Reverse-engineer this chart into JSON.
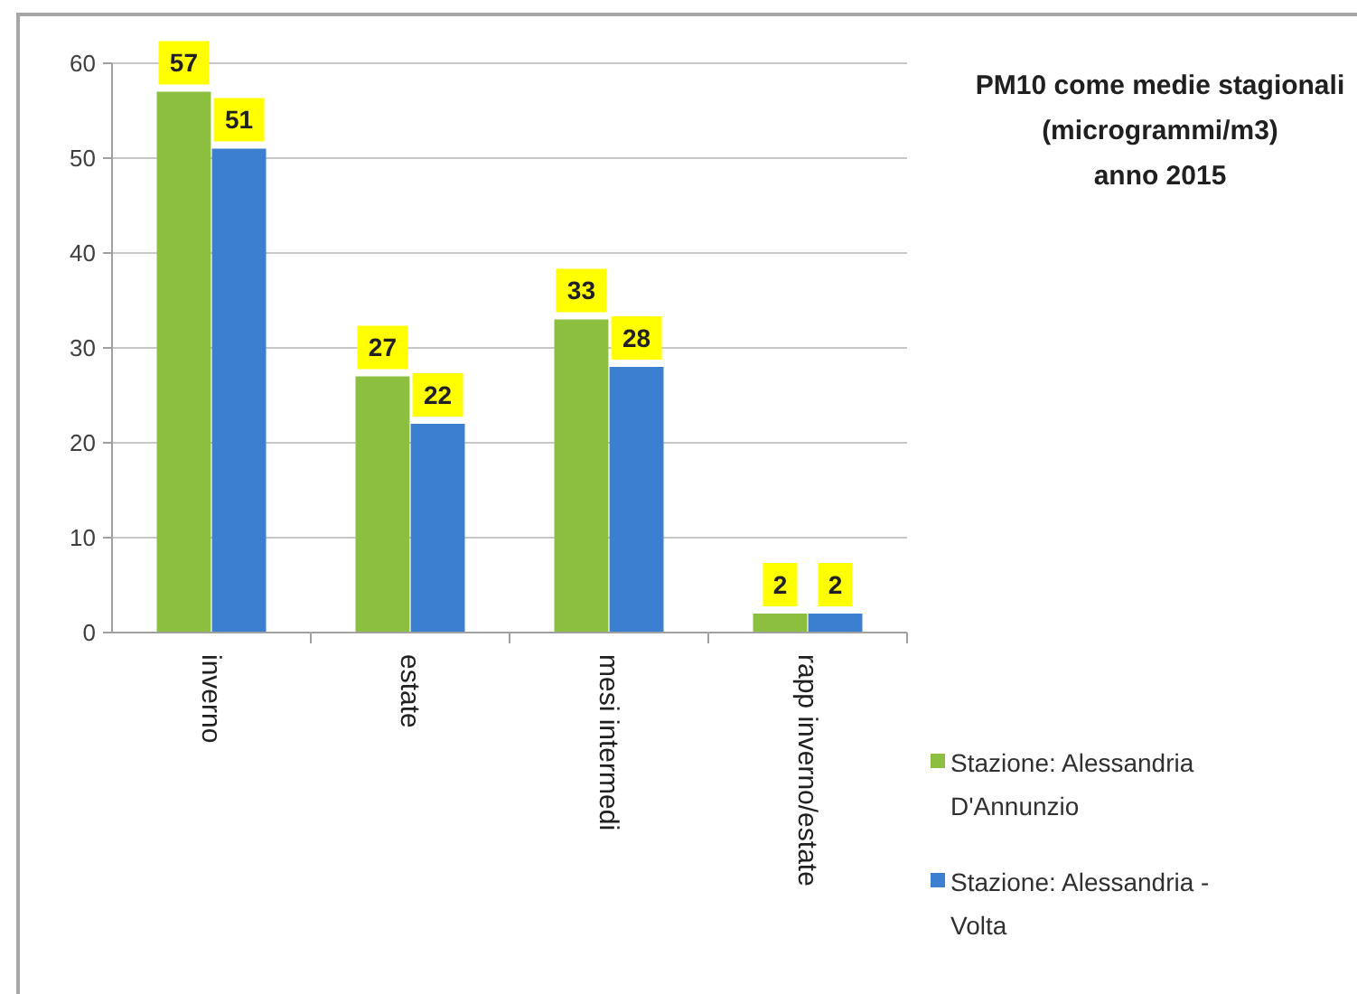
{
  "chart_data": {
    "type": "bar",
    "title": "PM10 come medie stagionali\n(microgrammi/m3)\nanno 2015",
    "categories": [
      "inverno",
      "estate",
      "mesi intermedi",
      "rapp inverno/estate"
    ],
    "series": [
      {
        "name": "Stazione: Alessandria D'Annunzio",
        "color": "#8cbf3f",
        "values": [
          57,
          27,
          33,
          2
        ]
      },
      {
        "name": "Stazione: Alessandria - Volta",
        "color": "#3a7fd0",
        "values": [
          51,
          22,
          28,
          2
        ]
      }
    ],
    "ylim": [
      0,
      60
    ],
    "yticks": [
      0,
      10,
      20,
      30,
      40,
      50,
      60
    ],
    "grid": "y",
    "legend": "right",
    "data_labels": true
  }
}
